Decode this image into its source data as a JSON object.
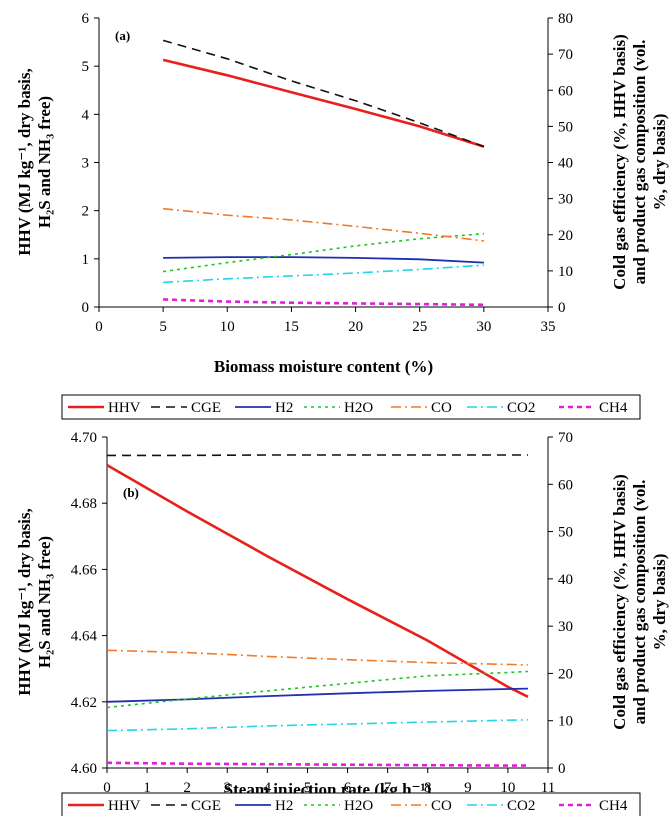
{
  "legend_items": [
    "HHV",
    "CGE",
    "H2",
    "H2O",
    "CO",
    "CO2",
    "CH4"
  ],
  "series_styles": {
    "HHV": {
      "color": "#e8201c",
      "dash": "",
      "width": 2.6
    },
    "CGE": {
      "color": "#111111",
      "dash": "9,6",
      "width": 1.6
    },
    "H2": {
      "color": "#1f2fb0",
      "dash": "",
      "width": 1.8
    },
    "H2O": {
      "color": "#22c422",
      "dash": "3,4",
      "width": 1.6
    },
    "CO": {
      "color": "#f07a2a",
      "dash": "10,4,2,4",
      "width": 1.6
    },
    "CO2": {
      "color": "#22d6e8",
      "dash": "10,4,2,4",
      "width": 1.6
    },
    "CH4": {
      "color": "#e020d8",
      "dash": "5,4",
      "width": 2.6
    }
  },
  "chart_data": [
    {
      "type": "line",
      "panel_label": "(a)",
      "xlabel": "Biomass moisture content (%)",
      "ylabel_left_lines": [
        "HHV (MJ kg⁻¹, dry basis,",
        "H₂S and NH₃ free)"
      ],
      "ylabel_right_lines": [
        "Cold gas efficiency (%, HHV basis)",
        "and product gas composition (vol.",
        "%, dry basis)"
      ],
      "xlim": [
        0,
        35
      ],
      "ylim_left": [
        0,
        6
      ],
      "ylim_right": [
        0,
        80
      ],
      "xticks": [
        0,
        5,
        10,
        15,
        20,
        25,
        30,
        35
      ],
      "yticks_left": [
        0,
        1,
        2,
        3,
        4,
        5,
        6
      ],
      "yticks_right": [
        0,
        10,
        20,
        30,
        40,
        50,
        60,
        70,
        80
      ],
      "x": [
        5,
        10,
        15,
        20,
        25,
        30
      ],
      "series": [
        {
          "name": "HHV",
          "axis": "left",
          "values": [
            5.13,
            4.81,
            4.46,
            4.11,
            3.75,
            3.33
          ]
        },
        {
          "name": "CGE",
          "axis": "right",
          "values": [
            73.8,
            68.7,
            62.6,
            57.1,
            51.0,
            44.4
          ]
        },
        {
          "name": "H2",
          "axis": "right",
          "values": [
            13.6,
            13.8,
            13.8,
            13.6,
            13.2,
            12.3
          ]
        },
        {
          "name": "H2O",
          "axis": "right",
          "values": [
            9.8,
            12.3,
            14.5,
            16.9,
            18.9,
            20.3
          ]
        },
        {
          "name": "CO",
          "axis": "right",
          "values": [
            27.2,
            25.4,
            24.1,
            22.3,
            20.4,
            18.3
          ]
        },
        {
          "name": "CO2",
          "axis": "right",
          "values": [
            6.8,
            7.8,
            8.6,
            9.4,
            10.4,
            11.6
          ]
        },
        {
          "name": "CH4",
          "axis": "right",
          "values": [
            2.1,
            1.5,
            1.2,
            1.0,
            0.8,
            0.6
          ]
        }
      ]
    },
    {
      "type": "line",
      "panel_label": "(b)",
      "xlabel": "Steam injection rate (kg h⁻¹)",
      "ylabel_left_lines": [
        "HHV (MJ kg⁻¹, dry basis,",
        "H₂S and NH₃ free)"
      ],
      "ylabel_right_lines": [
        "Cold gas efficiency (%, HHV basis)",
        "and product gas composition (vol.",
        "%, dry basis)"
      ],
      "xlim": [
        0,
        11
      ],
      "ylim_left": [
        4.6,
        4.7
      ],
      "ylim_right": [
        0,
        70
      ],
      "xticks": [
        0,
        1,
        2,
        3,
        4,
        5,
        6,
        7,
        8,
        9,
        10,
        11
      ],
      "yticks_left": [
        4.6,
        4.62,
        4.64,
        4.66,
        4.68,
        4.7
      ],
      "yticks_right": [
        0,
        10,
        20,
        30,
        40,
        50,
        60,
        70
      ],
      "x": [
        0,
        2,
        4,
        6,
        8,
        10,
        10.5
      ],
      "series": [
        {
          "name": "HHV",
          "axis": "left",
          "values": [
            4.6915,
            4.6775,
            4.664,
            4.651,
            4.6385,
            4.6245,
            4.6215
          ]
        },
        {
          "name": "CGE",
          "axis": "right",
          "values": [
            66.1,
            66.1,
            66.2,
            66.2,
            66.2,
            66.2,
            66.2
          ]
        },
        {
          "name": "H2",
          "axis": "right",
          "values": [
            14.0,
            14.5,
            15.2,
            15.8,
            16.3,
            16.7,
            16.8
          ]
        },
        {
          "name": "H2O",
          "axis": "right",
          "values": [
            12.8,
            14.6,
            16.3,
            17.9,
            19.5,
            20.2,
            20.4
          ]
        },
        {
          "name": "CO",
          "axis": "right",
          "values": [
            24.9,
            24.4,
            23.6,
            22.9,
            22.3,
            21.9,
            21.8
          ]
        },
        {
          "name": "CO2",
          "axis": "right",
          "values": [
            7.9,
            8.3,
            8.9,
            9.3,
            9.7,
            10.1,
            10.2
          ]
        },
        {
          "name": "CH4",
          "axis": "right",
          "values": [
            1.1,
            0.9,
            0.8,
            0.7,
            0.6,
            0.5,
            0.5
          ]
        }
      ]
    }
  ]
}
